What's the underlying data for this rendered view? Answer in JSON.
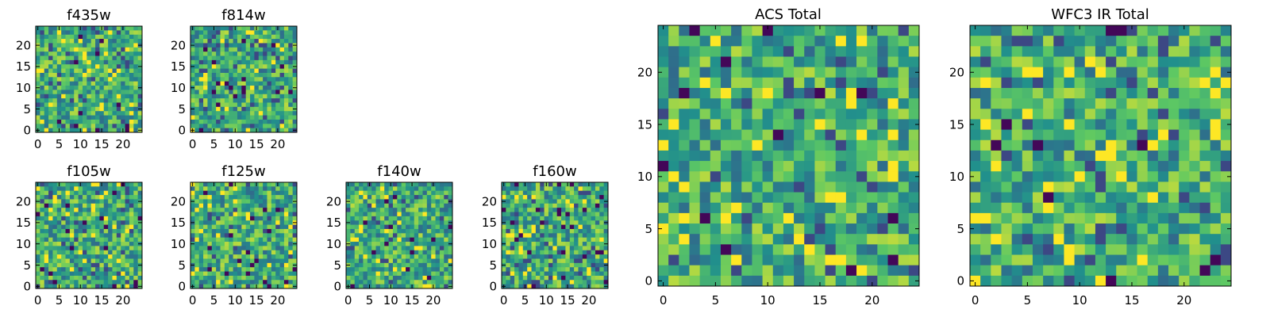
{
  "colormap": [
    "#440154",
    "#3b528b",
    "#21908c",
    "#5dc863",
    "#fde725"
  ],
  "chart_data": [
    {
      "id": "f435w",
      "type": "heatmap",
      "title": "f435w",
      "grid_size": 25,
      "seed": 11,
      "xlim": [
        0,
        24
      ],
      "ylim": [
        0,
        24
      ],
      "xticks": [
        0,
        5,
        10,
        15,
        20
      ],
      "yticks": [
        0,
        5,
        10,
        15,
        20
      ],
      "xtick_labels": [
        "0",
        "5",
        "10",
        "15",
        "20"
      ],
      "ytick_labels": [
        "0",
        "5",
        "10",
        "15",
        "20"
      ],
      "description_values": "pixel noise; values in colormap units 0-1"
    },
    {
      "id": "f814w",
      "type": "heatmap",
      "title": "f814w",
      "grid_size": 25,
      "seed": 23,
      "xlim": [
        0,
        24
      ],
      "ylim": [
        0,
        24
      ],
      "xticks": [
        0,
        5,
        10,
        15,
        20
      ],
      "yticks": [
        0,
        5,
        10,
        15,
        20
      ],
      "xtick_labels": [
        "0",
        "5",
        "10",
        "15",
        "20"
      ],
      "ytick_labels": [
        "0",
        "5",
        "10",
        "15",
        "20"
      ]
    },
    {
      "id": "f105w",
      "type": "heatmap",
      "title": "f105w",
      "grid_size": 25,
      "seed": 37,
      "xlim": [
        0,
        24
      ],
      "ylim": [
        0,
        24
      ],
      "xticks": [
        0,
        5,
        10,
        15,
        20
      ],
      "yticks": [
        0,
        5,
        10,
        15,
        20
      ],
      "xtick_labels": [
        "0",
        "5",
        "10",
        "15",
        "20"
      ],
      "ytick_labels": [
        "0",
        "5",
        "10",
        "15",
        "20"
      ]
    },
    {
      "id": "f125w",
      "type": "heatmap",
      "title": "f125w",
      "grid_size": 25,
      "seed": 41,
      "xlim": [
        0,
        24
      ],
      "ylim": [
        0,
        24
      ],
      "xticks": [
        0,
        5,
        10,
        15,
        20
      ],
      "yticks": [
        0,
        5,
        10,
        15,
        20
      ],
      "xtick_labels": [
        "0",
        "5",
        "10",
        "15",
        "20"
      ],
      "ytick_labels": [
        "0",
        "5",
        "10",
        "15",
        "20"
      ]
    },
    {
      "id": "f140w",
      "type": "heatmap",
      "title": "f140w",
      "grid_size": 25,
      "seed": 53,
      "xlim": [
        0,
        24
      ],
      "ylim": [
        0,
        24
      ],
      "xticks": [
        0,
        5,
        10,
        15,
        20
      ],
      "yticks": [
        0,
        5,
        10,
        15,
        20
      ],
      "xtick_labels": [
        "0",
        "5",
        "10",
        "15",
        "20"
      ],
      "ytick_labels": [
        "0",
        "5",
        "10",
        "15",
        "20"
      ]
    },
    {
      "id": "f160w",
      "type": "heatmap",
      "title": "f160w",
      "grid_size": 25,
      "seed": 67,
      "xlim": [
        0,
        24
      ],
      "ylim": [
        0,
        24
      ],
      "xticks": [
        0,
        5,
        10,
        15,
        20
      ],
      "yticks": [
        0,
        5,
        10,
        15,
        20
      ],
      "xtick_labels": [
        "0",
        "5",
        "10",
        "15",
        "20"
      ],
      "ytick_labels": [
        "0",
        "5",
        "10",
        "15",
        "20"
      ]
    },
    {
      "id": "acs-total",
      "type": "heatmap",
      "title": "ACS Total",
      "grid_size": 25,
      "seed": 79,
      "xlim": [
        0,
        24
      ],
      "ylim": [
        0,
        24
      ],
      "xticks": [
        0,
        5,
        10,
        15,
        20
      ],
      "yticks": [
        0,
        5,
        10,
        15,
        20
      ],
      "xtick_labels": [
        "0",
        "5",
        "10",
        "15",
        "20"
      ],
      "ytick_labels": [
        "0",
        "5",
        "10",
        "15",
        "20"
      ]
    },
    {
      "id": "wfc3-ir-total",
      "type": "heatmap",
      "title": "WFC3 IR Total",
      "grid_size": 25,
      "seed": 97,
      "xlim": [
        0,
        24
      ],
      "ylim": [
        0,
        24
      ],
      "xticks": [
        0,
        5,
        10,
        15,
        20
      ],
      "yticks": [
        0,
        5,
        10,
        15,
        20
      ],
      "xtick_labels": [
        "0",
        "5",
        "10",
        "15",
        "20"
      ],
      "ytick_labels": [
        "0",
        "5",
        "10",
        "15",
        "20"
      ]
    }
  ]
}
